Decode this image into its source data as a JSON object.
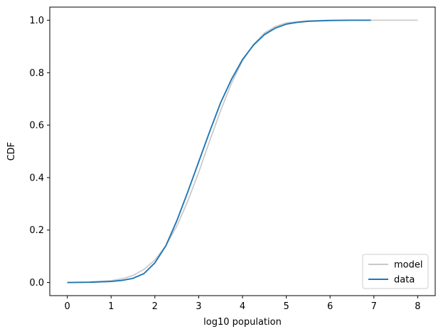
{
  "chart_data": {
    "type": "line",
    "xlabel": "log10 population",
    "ylabel": "CDF",
    "xlim": [
      -0.4,
      8.4
    ],
    "ylim": [
      -0.05,
      1.05
    ],
    "xticks": [
      "0",
      "1",
      "2",
      "3",
      "4",
      "5",
      "6",
      "7",
      "8"
    ],
    "yticks": [
      "0.0",
      "0.2",
      "0.4",
      "0.6",
      "0.8",
      "1.0"
    ],
    "grid": false,
    "legend_position": "lower-right",
    "series": [
      {
        "name": "model",
        "color": "#c8c8c8",
        "x": [
          0,
          0.5,
          1,
          1.25,
          1.5,
          1.75,
          2,
          2.25,
          2.5,
          2.75,
          3,
          3.25,
          3.5,
          3.75,
          4,
          4.25,
          4.5,
          4.75,
          5,
          5.5,
          6,
          6.5,
          7,
          7.5,
          8
        ],
        "y": [
          0.0,
          0.002,
          0.007,
          0.014,
          0.027,
          0.05,
          0.086,
          0.14,
          0.215,
          0.31,
          0.42,
          0.54,
          0.655,
          0.76,
          0.845,
          0.908,
          0.951,
          0.976,
          0.99,
          0.998,
          1.0,
          1.0,
          1.0,
          1.0,
          1.0
        ]
      },
      {
        "name": "data",
        "color": "#1f77b4",
        "x": [
          0,
          0.5,
          1,
          1.25,
          1.5,
          1.75,
          2,
          2.25,
          2.5,
          2.75,
          3,
          3.25,
          3.5,
          3.75,
          4,
          4.25,
          4.5,
          4.75,
          5,
          5.25,
          5.5,
          6,
          6.5,
          6.93
        ],
        "y": [
          0.0,
          0.001,
          0.004,
          0.008,
          0.016,
          0.034,
          0.075,
          0.14,
          0.235,
          0.345,
          0.46,
          0.575,
          0.685,
          0.775,
          0.85,
          0.905,
          0.945,
          0.97,
          0.985,
          0.992,
          0.996,
          0.999,
          1.0,
          1.0
        ]
      }
    ]
  }
}
